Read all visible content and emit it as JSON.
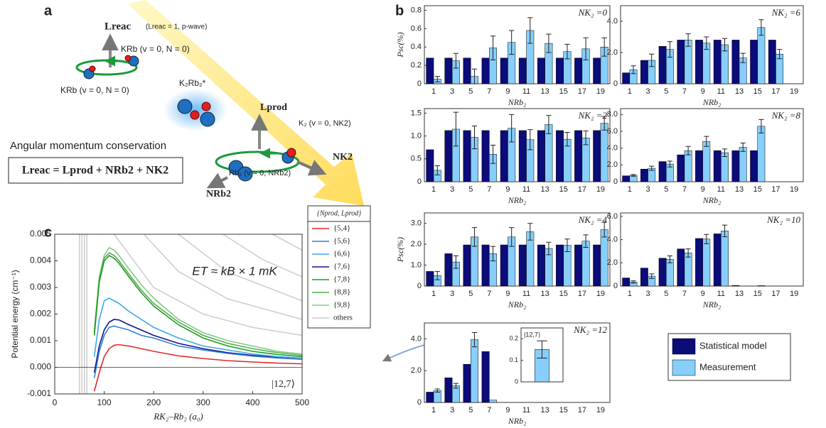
{
  "panel_labels": [
    "a",
    "b",
    "c"
  ],
  "diagram": {
    "l_reac": "Lreac",
    "l_reac_note": "(Lreac = 1, p-wave)",
    "krb_top": "KRb (v = 0, N = 0)",
    "krb_bottom": "KRb (v = 0, N = 0)",
    "complex": "K₂Rb₂*",
    "l_prod": "Lprod",
    "k2": "K₂ (v = 0, NK2)",
    "n_k2": "NK2",
    "rb2": "Rb₂ (v = 0, NRb2)",
    "n_rb2": "NRb2",
    "conservation": "Angular momentum conservation",
    "equation": "Lreac = Lprod + NRb2 + NK2"
  },
  "chart_data": [
    {
      "type": "bar",
      "title": "NK₂ =0",
      "ylabel": "Psc(%)",
      "xlabel": "NRb₂",
      "categories": [
        "1",
        "3",
        "5",
        "7",
        "9",
        "11",
        "13",
        "15",
        "17",
        "19"
      ],
      "ylim": [
        0,
        0.85
      ],
      "yticks": [
        0,
        0.2,
        0.4,
        0.6,
        0.8
      ],
      "series": [
        {
          "name": "Statistical model",
          "color": "#0b0b7a",
          "values": [
            0.28,
            0.28,
            0.28,
            0.28,
            0.28,
            0.28,
            0.28,
            0.28,
            0.28,
            0.28
          ]
        },
        {
          "name": "Measurement",
          "color": "#87cefa",
          "values": [
            0.05,
            0.25,
            0.08,
            0.39,
            0.45,
            0.58,
            0.44,
            0.35,
            0.38,
            0.4
          ],
          "errors": [
            0.03,
            0.08,
            0.08,
            0.13,
            0.13,
            0.14,
            0.1,
            0.08,
            0.12,
            0.1
          ]
        }
      ]
    },
    {
      "type": "bar",
      "title": "NK₂ =6",
      "xlabel": "NRb₂",
      "categories": [
        "1",
        "3",
        "5",
        "7",
        "9",
        "11",
        "13",
        "15",
        "17",
        "19"
      ],
      "ylim": [
        0,
        5
      ],
      "yticks": [
        0,
        {
          "value": 2,
          "label": "2.0"
        },
        {
          "value": 4,
          "label": "4.0"
        }
      ],
      "series": [
        {
          "name": "Statistical model",
          "color": "#0b0b7a",
          "values": [
            0.7,
            1.5,
            2.4,
            2.8,
            2.8,
            2.8,
            2.8,
            2.8,
            2.8,
            null
          ]
        },
        {
          "name": "Measurement",
          "color": "#87cefa",
          "values": [
            0.9,
            1.5,
            2.2,
            2.8,
            2.6,
            2.5,
            1.65,
            3.6,
            1.9,
            null
          ],
          "errors": [
            0.25,
            0.4,
            0.5,
            0.4,
            0.4,
            0.4,
            0.3,
            0.5,
            0.3,
            null
          ]
        }
      ]
    },
    {
      "type": "bar",
      "title": "NK₂ =2",
      "xlabel": "NRb₂",
      "categories": [
        "1",
        "3",
        "5",
        "7",
        "9",
        "11",
        "13",
        "15",
        "17",
        "19"
      ],
      "ylim": [
        0,
        1.6
      ],
      "yticks": [
        0,
        0.5,
        {
          "value": 1,
          "label": "1.0"
        },
        1.5
      ],
      "series": [
        {
          "name": "Statistical model",
          "color": "#0b0b7a",
          "values": [
            0.7,
            1.12,
            1.12,
            1.12,
            1.12,
            1.12,
            1.12,
            1.12,
            1.12,
            1.12
          ]
        },
        {
          "name": "Measurement",
          "color": "#87cefa",
          "values": [
            0.25,
            1.15,
            0.97,
            0.6,
            1.17,
            0.92,
            1.25,
            0.93,
            0.96,
            1.28
          ],
          "errors": [
            0.1,
            0.37,
            0.25,
            0.2,
            0.3,
            0.22,
            0.2,
            0.15,
            0.15,
            0.15
          ]
        }
      ]
    },
    {
      "type": "bar",
      "title": "NK₂ =8",
      "xlabel": "NRb₂",
      "categories": [
        "1",
        "3",
        "5",
        "7",
        "9",
        "11",
        "13",
        "15",
        "17",
        "19"
      ],
      "ylim": [
        0,
        8.7
      ],
      "yticks": [
        0,
        {
          "value": 2,
          "label": "2.0"
        },
        {
          "value": 4,
          "label": "4.0"
        },
        {
          "value": 6,
          "label": "6.0"
        },
        {
          "value": 8,
          "label": "8.0"
        }
      ],
      "series": [
        {
          "name": "Statistical model",
          "color": "#0b0b7a",
          "values": [
            0.7,
            1.5,
            2.4,
            3.2,
            3.7,
            3.7,
            3.7,
            3.7,
            null,
            null
          ]
        },
        {
          "name": "Measurement",
          "color": "#87cefa",
          "values": [
            0.75,
            1.6,
            2.1,
            3.7,
            4.8,
            3.45,
            4.1,
            6.6,
            null,
            null
          ],
          "errors": [
            0.1,
            0.25,
            0.35,
            0.5,
            0.6,
            0.45,
            0.5,
            0.8,
            null,
            null
          ]
        }
      ]
    },
    {
      "type": "bar",
      "title": "NK₂ =4",
      "ylabel": "Psc(%)",
      "xlabel": "NRb₂",
      "categories": [
        "1",
        "3",
        "5",
        "7",
        "9",
        "11",
        "13",
        "15",
        "17",
        "19"
      ],
      "ylim": [
        0,
        3.5
      ],
      "yticks": [
        0,
        {
          "value": 1,
          "label": "1.0"
        },
        {
          "value": 2,
          "label": "2.0"
        },
        {
          "value": 3,
          "label": "3.0"
        }
      ],
      "series": [
        {
          "name": "Statistical model",
          "color": "#0b0b7a",
          "values": [
            0.7,
            1.55,
            1.97,
            1.97,
            1.97,
            1.97,
            1.97,
            1.97,
            1.97,
            1.97
          ]
        },
        {
          "name": "Measurement",
          "color": "#87cefa",
          "values": [
            0.5,
            1.15,
            2.35,
            1.55,
            2.35,
            2.6,
            1.8,
            1.95,
            2.15,
            2.7
          ],
          "errors": [
            0.2,
            0.3,
            0.45,
            0.35,
            0.45,
            0.4,
            0.3,
            0.3,
            0.3,
            0.35
          ]
        }
      ]
    },
    {
      "type": "bar",
      "title": "NK₂ =10",
      "xlabel": "NRb₂",
      "categories": [
        "1",
        "3",
        "5",
        "7",
        "9",
        "11",
        "13",
        "15",
        "17",
        "19"
      ],
      "ylim": [
        0,
        6.3
      ],
      "yticks": [
        0,
        {
          "value": 2,
          "label": "2.0"
        },
        {
          "value": 4,
          "label": "4.0"
        },
        {
          "value": 6,
          "label": "6.0"
        }
      ],
      "series": [
        {
          "name": "Statistical model",
          "color": "#0b0b7a",
          "values": [
            0.7,
            1.55,
            2.4,
            3.2,
            4.1,
            4.5,
            0.05,
            null,
            null,
            null
          ]
        },
        {
          "name": "Measurement",
          "color": "#87cefa",
          "values": [
            0.35,
            0.85,
            2.3,
            2.85,
            4.05,
            4.75,
            null,
            0.04,
            null,
            null
          ],
          "errors": [
            0.1,
            0.2,
            0.3,
            0.35,
            0.4,
            0.5,
            null,
            null,
            null,
            null
          ]
        }
      ]
    },
    {
      "type": "bar",
      "title": "NK₂ =12",
      "xlabel": "NRb₂",
      "categories": [
        "1",
        "3",
        "5",
        "7",
        "9",
        "11",
        "13",
        "15",
        "17",
        "19"
      ],
      "ylim": [
        0,
        5
      ],
      "yticks": [
        0,
        {
          "value": 2,
          "label": "2.0"
        },
        {
          "value": 4,
          "label": "4.0"
        }
      ],
      "series": [
        {
          "name": "Statistical model",
          "color": "#0b0b7a",
          "values": [
            0.65,
            1.55,
            2.4,
            3.2,
            null,
            null,
            null,
            null,
            null,
            null
          ]
        },
        {
          "name": "Measurement",
          "color": "#87cefa",
          "values": [
            0.75,
            1.05,
            3.95,
            0.15,
            null,
            null,
            null,
            null,
            null,
            null
          ],
          "errors": [
            0.1,
            0.15,
            0.45,
            null,
            null,
            null,
            null,
            null,
            null,
            null
          ]
        }
      ]
    },
    {
      "type": "bar",
      "categories": [
        "|12,7⟩"
      ],
      "ylim": [
        0,
        0.25
      ],
      "yticks": [
        0,
        0.1,
        0.2
      ],
      "series": [
        {
          "name": "Measurement",
          "color": "#87cefa",
          "values": [
            0.15
          ],
          "errors": [
            0.04
          ]
        }
      ]
    },
    {
      "type": "line",
      "ylabel": "Potential energy (cm⁻¹)",
      "xlabel": "RK₂–Rb₂ (a₀)",
      "legend_title": "{Nprod, Lprod}",
      "annotations": [
        "ET ≈ kB × 1 mK",
        "|12,7⟩"
      ],
      "xlim": [
        0,
        500
      ],
      "xticks": [
        0,
        100,
        200,
        300,
        400,
        500
      ],
      "ylim": [
        -0.001,
        0.005
      ],
      "yticks": [
        -0.001,
        {
          "value": 0,
          "label": "0.000"
        },
        0.001,
        0.002,
        0.003,
        0.004,
        0.005
      ],
      "series": [
        {
          "name": "{5,4}",
          "color": "#e02828",
          "x": [
            80,
            90,
            100,
            110,
            120,
            130,
            150,
            175,
            200,
            250,
            300,
            350,
            400,
            450,
            500
          ],
          "values": [
            -0.0009,
            -0.0002,
            0.0004,
            0.0007,
            0.00083,
            0.00085,
            0.0008,
            0.0007,
            0.0006,
            0.00043,
            0.00033,
            0.00025,
            0.0002,
            0.00016,
            0.00013
          ]
        },
        {
          "name": "{5,6}",
          "color": "#2f7fd8",
          "x": [
            80,
            90,
            100,
            110,
            120,
            130,
            150,
            175,
            200,
            250,
            300,
            350,
            400,
            450,
            500
          ],
          "values": [
            -0.0004,
            0.0006,
            0.0012,
            0.0015,
            0.00155,
            0.0015,
            0.0014,
            0.0012,
            0.0011,
            0.0008,
            0.00065,
            0.00052,
            0.00042,
            0.00035,
            0.0003
          ]
        },
        {
          "name": "{6,6}",
          "color": "#3aa8e8",
          "x": [
            80,
            90,
            100,
            110,
            120,
            130,
            150,
            175,
            200,
            250,
            300,
            350,
            400,
            450,
            500
          ],
          "values": [
            0.0004,
            0.0018,
            0.0025,
            0.0026,
            0.0025,
            0.0024,
            0.0021,
            0.0018,
            0.0015,
            0.0011,
            0.0008,
            0.00065,
            0.0005,
            0.0004,
            0.00035
          ]
        },
        {
          "name": "{7,6}",
          "color": "#14148c",
          "x": [
            80,
            90,
            100,
            110,
            120,
            130,
            150,
            175,
            200,
            250,
            300,
            350,
            400,
            450,
            500
          ],
          "values": [
            -0.0002,
            0.0008,
            0.0014,
            0.0017,
            0.0018,
            0.00178,
            0.0016,
            0.0014,
            0.0012,
            0.0009,
            0.0007,
            0.00055,
            0.00045,
            0.00037,
            0.0003
          ]
        },
        {
          "name": "{7,8}",
          "color": "#1e9a1e",
          "x": [
            80,
            90,
            100,
            110,
            120,
            130,
            150,
            175,
            200,
            250,
            300,
            350,
            400,
            450,
            500
          ],
          "values": [
            0.0012,
            0.0032,
            0.004,
            0.0042,
            0.0041,
            0.0039,
            0.0034,
            0.0028,
            0.0023,
            0.0016,
            0.0011,
            0.0008,
            0.0006,
            0.00048,
            0.0004
          ]
        },
        {
          "name": "{8,8}",
          "color": "#4cb04c",
          "x": [
            80,
            90,
            100,
            110,
            120,
            130,
            150,
            175,
            200,
            250,
            300,
            350,
            400,
            450,
            500
          ],
          "values": [
            0.0013,
            0.0033,
            0.0041,
            0.0043,
            0.0042,
            0.004,
            0.0035,
            0.0029,
            0.0024,
            0.0017,
            0.0012,
            0.0009,
            0.0007,
            0.00055,
            0.00045
          ]
        },
        {
          "name": "{9,8}",
          "color": "#86c886",
          "x": [
            80,
            90,
            100,
            110,
            120,
            130,
            150,
            175,
            200,
            250,
            300,
            350,
            400,
            450,
            500
          ],
          "values": [
            0.0014,
            0.0034,
            0.0042,
            0.0045,
            0.0044,
            0.0042,
            0.0037,
            0.0031,
            0.0026,
            0.0018,
            0.0013,
            0.001,
            0.0008,
            0.0006,
            0.0005
          ]
        },
        {
          "name": "others",
          "color": "#cccccc",
          "x": [
            50,
            50,
            null,
            55,
            55,
            null,
            60,
            60,
            null,
            65,
            65,
            null,
            120,
            200,
            300,
            400,
            500,
            null,
            180,
            250,
            350,
            500,
            null,
            250,
            350,
            500,
            null,
            340,
            420,
            500,
            null,
            440,
            500
          ],
          "values": [
            -0.001,
            0.005,
            null,
            -0.001,
            0.005,
            null,
            -0.001,
            0.005,
            null,
            -0.001,
            0.005,
            null,
            0.005,
            0.003,
            0.002,
            0.0015,
            0.0012,
            null,
            0.005,
            0.0036,
            0.00257,
            0.0018,
            null,
            0.005,
            0.00357,
            0.0025,
            null,
            0.005,
            0.00405,
            0.0034,
            null,
            0.005,
            0.0044
          ]
        }
      ]
    }
  ]
}
